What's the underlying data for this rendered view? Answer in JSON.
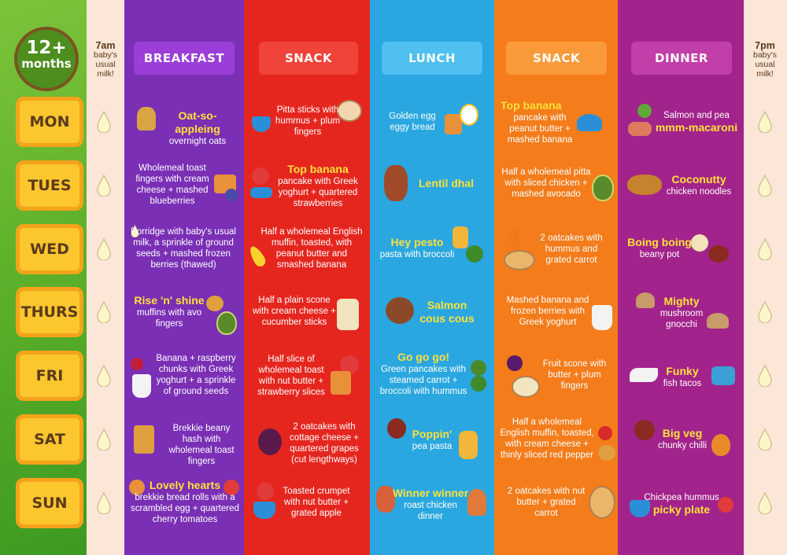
{
  "badge": {
    "big": "12+",
    "small": "months"
  },
  "milk_morning": {
    "time": "7am",
    "note": "baby's usual milk!"
  },
  "milk_evening": {
    "time": "7pm",
    "note": "baby's usual milk!"
  },
  "headers": {
    "breakfast": "BREAKFAST",
    "snack1": "SNACK",
    "lunch": "LUNCH",
    "snack2": "SNACK",
    "dinner": "DINNER"
  },
  "days": [
    "MON",
    "TUES",
    "WED",
    "THURS",
    "FRI",
    "SAT",
    "SUN"
  ],
  "colors": {
    "breakfast": "#7a2fb5",
    "snack1": "#e5261f",
    "lunch": "#2aa7e0",
    "snack2": "#f57c1b",
    "dinner": "#a2238b",
    "highlight": "#fde13a",
    "day_tile": "#fcc62e"
  },
  "meals": {
    "mon": {
      "breakfast": {
        "title": "Oat-so-appleing",
        "text": "overnight oats"
      },
      "snack1": {
        "title": "",
        "text": "Pitta sticks with hummus + plum fingers"
      },
      "lunch": {
        "title": "",
        "text": "Golden egg eggy bread"
      },
      "snack2": {
        "title": "Top banana",
        "text": "pancake with peanut butter + mashed banana"
      },
      "dinner": {
        "title": "mmm-macaroni",
        "text": "Salmon and pea"
      }
    },
    "tues": {
      "breakfast": {
        "title": "",
        "text": "Wholemeal toast fingers with cream cheese + mashed blueberries"
      },
      "snack1": {
        "title": "Top banana",
        "text": "pancake with Greek yoghurt + quartered strawberries"
      },
      "lunch": {
        "title": "Lentil dhal",
        "text": ""
      },
      "snack2": {
        "title": "",
        "text": "Half a wholemeal pitta with sliced chicken + mashed avocado"
      },
      "dinner": {
        "title": "Coconutty",
        "text": "chicken noodles"
      }
    },
    "wed": {
      "breakfast": {
        "title": "",
        "text": "Porridge with baby's usual milk, a sprinkle of ground seeds + mashed frozen berries (thawed)"
      },
      "snack1": {
        "title": "",
        "text": "Half a wholemeal English muffin, toasted, with peanut butter and smashed banana"
      },
      "lunch": {
        "title": "Hey pesto",
        "text": "pasta with broccoli"
      },
      "snack2": {
        "title": "",
        "text": "2 oatcakes with hummus and grated carrot"
      },
      "dinner": {
        "title": "Boing boing",
        "text": "beany pot"
      }
    },
    "thurs": {
      "breakfast": {
        "title": "Rise 'n' shine",
        "text": "muffins with avo fingers"
      },
      "snack1": {
        "title": "",
        "text": "Half a plain scone with cream cheese + cucumber sticks"
      },
      "lunch": {
        "title": "Salmon cous cous",
        "text": ""
      },
      "snack2": {
        "title": "",
        "text": "Mashed banana and frozen berries with Greek yoghurt"
      },
      "dinner": {
        "title": "Mighty",
        "text": "mushroom gnocchi"
      }
    },
    "fri": {
      "breakfast": {
        "title": "",
        "text": "Banana + raspberry chunks with Greek yoghurt + a sprinkle of ground seeds"
      },
      "snack1": {
        "title": "",
        "text": "Half slice of wholemeal toast with nut butter + strawberry slices"
      },
      "lunch": {
        "title": "Go go go!",
        "text": "Green pancakes with steamed carrot + broccoli with hummus"
      },
      "snack2": {
        "title": "",
        "text": "Fruit scone with butter + plum fingers"
      },
      "dinner": {
        "title": "Funky",
        "text": "fish tacos"
      }
    },
    "sat": {
      "breakfast": {
        "title": "",
        "text": "Brekkie beany hash with wholemeal toast fingers"
      },
      "snack1": {
        "title": "",
        "text": "2 oatcakes with cottage cheese + quartered grapes (cut lengthways)"
      },
      "lunch": {
        "title": "Poppin'",
        "text": "pea pasta"
      },
      "snack2": {
        "title": "",
        "text": "Half a wholemeal English muffin, toasted, with cream cheese + thinly sliced red pepper"
      },
      "dinner": {
        "title": "Big veg",
        "text": "chunky chilli"
      }
    },
    "sun": {
      "breakfast": {
        "title": "Lovely hearts",
        "text": "brekkie bread rolls with a scrambled egg + quartered cherry tomatoes"
      },
      "snack1": {
        "title": "",
        "text": "Toasted crumpet with nut butter + grated apple"
      },
      "lunch": {
        "title": "Winner winner",
        "text": "roast chicken dinner"
      },
      "snack2": {
        "title": "",
        "text": "2 oatcakes with nut butter + grated carrot"
      },
      "dinner": {
        "title": "picky plate",
        "text": "Chickpea hummus"
      }
    }
  }
}
